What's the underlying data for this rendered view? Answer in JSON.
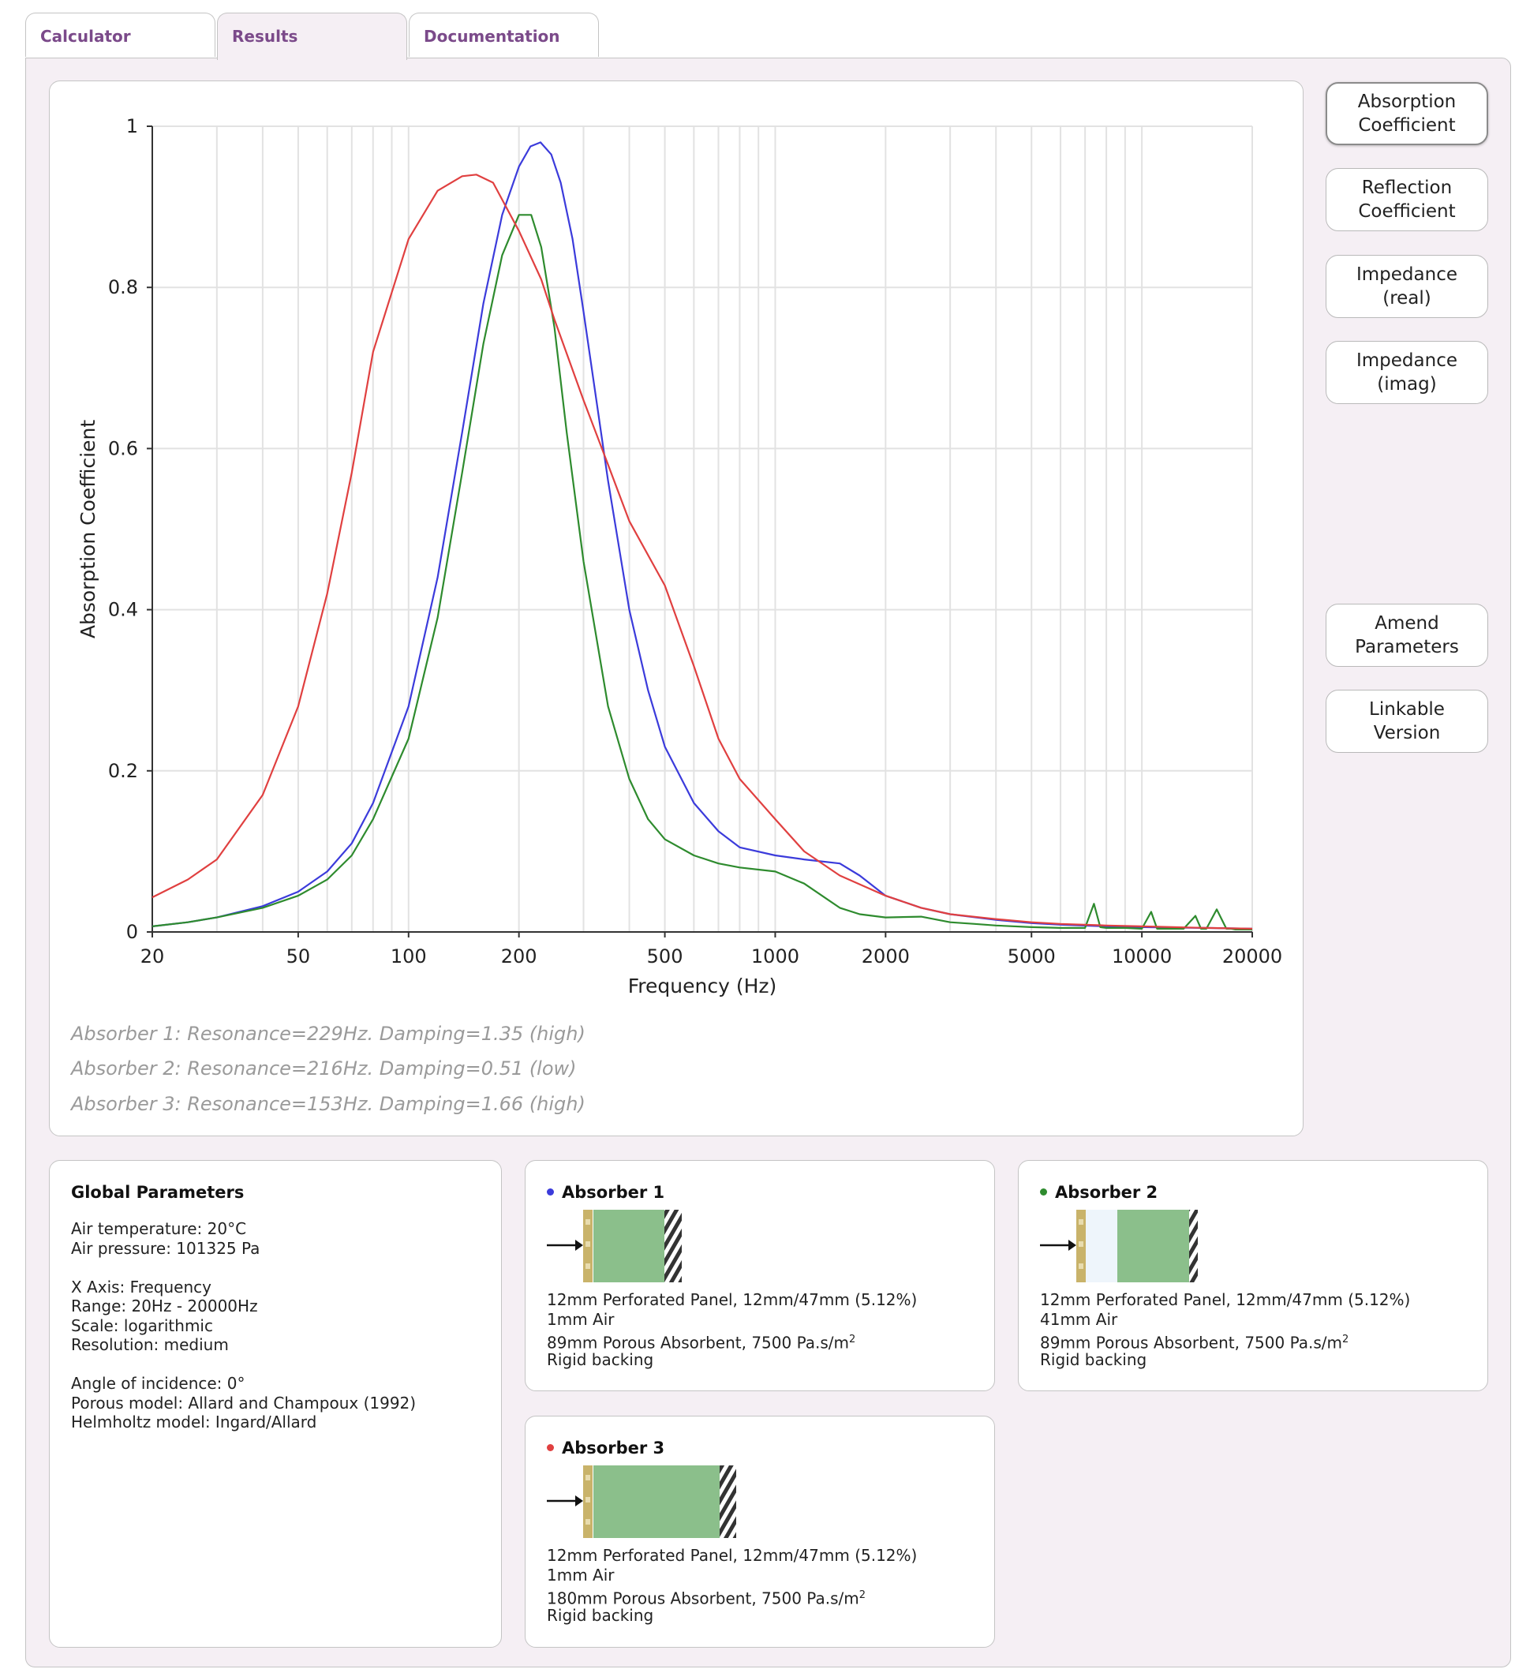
{
  "tabs": [
    {
      "label": "Calculator"
    },
    {
      "label": "Results"
    },
    {
      "label": "Documentation"
    }
  ],
  "side_buttons": {
    "absorption": "Absorption\nCoefficient",
    "reflection": "Reflection\nCoefficient",
    "impedance_real": "Impedance\n(real)",
    "impedance_imag": "Impedance\n(imag)",
    "amend": "Amend\nParameters",
    "linkable": "Linkable\nVersion"
  },
  "chart_data": {
    "type": "line",
    "xlabel": "Frequency (Hz)",
    "ylabel": "Absorption Coefficient",
    "x_scale": "log",
    "xlim": [
      20,
      20000
    ],
    "ylim": [
      0,
      1
    ],
    "x_ticks": [
      "20",
      "50",
      "100",
      "200",
      "500",
      "1000",
      "2000",
      "5000",
      "10000",
      "20000"
    ],
    "y_ticks": [
      "0",
      "0.2",
      "0.4",
      "0.6",
      "0.8",
      "1"
    ],
    "grid": true,
    "series": [
      {
        "color": "#3b3bdb",
        "x": [
          20,
          25,
          30,
          40,
          50,
          60,
          70,
          80,
          100,
          120,
          140,
          160,
          180,
          200,
          215,
          229,
          245,
          260,
          280,
          300,
          350,
          400,
          450,
          500,
          600,
          700,
          800,
          1000,
          1200,
          1500,
          1700,
          2000,
          2500,
          3000,
          4000,
          5000,
          6000,
          8000,
          10000,
          15000,
          20000
        ],
        "values": [
          0.007,
          0.012,
          0.018,
          0.032,
          0.05,
          0.075,
          0.11,
          0.16,
          0.28,
          0.44,
          0.62,
          0.78,
          0.89,
          0.95,
          0.975,
          0.98,
          0.965,
          0.93,
          0.86,
          0.77,
          0.56,
          0.4,
          0.3,
          0.23,
          0.16,
          0.125,
          0.105,
          0.095,
          0.09,
          0.085,
          0.07,
          0.045,
          0.03,
          0.022,
          0.015,
          0.011,
          0.009,
          0.007,
          0.006,
          0.005,
          0.004
        ]
      },
      {
        "color": "#2e8b2e",
        "x": [
          20,
          25,
          30,
          40,
          50,
          60,
          70,
          80,
          100,
          120,
          140,
          160,
          180,
          200,
          216,
          230,
          250,
          270,
          300,
          350,
          400,
          450,
          500,
          600,
          700,
          800,
          1000,
          1200,
          1500,
          1700,
          2000,
          2500,
          3000,
          3500,
          4000,
          5000,
          6000,
          7000,
          7400,
          7700,
          8000,
          9000,
          10000,
          10600,
          11000,
          13000,
          14000,
          14500,
          15000,
          16000,
          17000,
          17500,
          18000,
          20000
        ],
        "values": [
          0.007,
          0.012,
          0.018,
          0.03,
          0.045,
          0.065,
          0.095,
          0.14,
          0.24,
          0.39,
          0.57,
          0.73,
          0.84,
          0.89,
          0.89,
          0.85,
          0.75,
          0.62,
          0.46,
          0.28,
          0.19,
          0.14,
          0.115,
          0.095,
          0.085,
          0.08,
          0.075,
          0.06,
          0.03,
          0.022,
          0.018,
          0.019,
          0.012,
          0.01,
          0.008,
          0.006,
          0.005,
          0.005,
          0.035,
          0.006,
          0.005,
          0.005,
          0.004,
          0.025,
          0.004,
          0.004,
          0.02,
          0.004,
          0.004,
          0.028,
          0.004,
          0.004,
          0.003,
          0.003
        ]
      },
      {
        "color": "#e04040",
        "x": [
          20,
          25,
          30,
          40,
          50,
          60,
          70,
          80,
          100,
          120,
          140,
          153,
          170,
          200,
          230,
          250,
          300,
          350,
          400,
          500,
          600,
          700,
          800,
          1000,
          1200,
          1500,
          2000,
          2500,
          3000,
          4000,
          5000,
          6000,
          8000,
          10000,
          15000,
          20000
        ],
        "values": [
          0.043,
          0.065,
          0.09,
          0.17,
          0.28,
          0.42,
          0.57,
          0.72,
          0.86,
          0.92,
          0.938,
          0.94,
          0.93,
          0.87,
          0.81,
          0.76,
          0.66,
          0.58,
          0.51,
          0.43,
          0.33,
          0.24,
          0.19,
          0.14,
          0.1,
          0.07,
          0.045,
          0.03,
          0.022,
          0.016,
          0.012,
          0.01,
          0.008,
          0.007,
          0.005,
          0.004
        ]
      }
    ]
  },
  "results": [
    "Absorber 1: Resonance=229Hz. Damping=1.35 (high)",
    "Absorber 2: Resonance=216Hz. Damping=0.51 (low)",
    "Absorber 3: Resonance=153Hz. Damping=1.66 (high)"
  ],
  "global": {
    "title": "Global Parameters",
    "air_temp": "Air temperature: 20°C",
    "air_pressure": "Air pressure: 101325 Pa",
    "x_axis": "X Axis: Frequency",
    "range": "Range: 20Hz - 20000Hz",
    "scale": "Scale: logarithmic",
    "resolution": "Resolution: medium",
    "angle": "Angle of incidence: 0°",
    "porous": "Porous model: Allard and Champoux (1992)",
    "helmholtz": "Helmholtz model: Ingard/Allard"
  },
  "absorbers": [
    {
      "title": "Absorber 1",
      "dot_color": "#3b3bdb",
      "panel": "12mm Perforated Panel, 12mm/47mm (5.12%)",
      "air": "1mm Air",
      "porous_pre": "89mm Porous Absorbent, 7500 Pa.s/m",
      "sup": "2",
      "backing": "Rigid backing"
    },
    {
      "title": "Absorber 2",
      "dot_color": "#2e8b2e",
      "panel": "12mm Perforated Panel, 12mm/47mm (5.12%)",
      "air": "41mm Air",
      "porous_pre": "89mm Porous Absorbent, 7500 Pa.s/m",
      "sup": "2",
      "backing": "Rigid backing"
    },
    {
      "title": "Absorber 3",
      "dot_color": "#e04040",
      "panel": "12mm Perforated Panel, 12mm/47mm (5.12%)",
      "air": "1mm Air",
      "porous_pre": "180mm Porous Absorbent, 7500 Pa.s/m",
      "sup": "2",
      "backing": "Rigid backing"
    }
  ],
  "colors": {
    "accent": "#7b4a8a",
    "panel_bg": "#f5eff4",
    "porous": "#8bbf8b",
    "perforated": "#c9b36a"
  }
}
